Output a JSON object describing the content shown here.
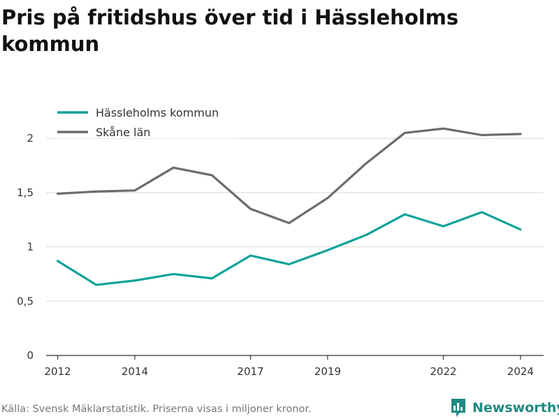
{
  "title": "Pris på fritidshus över tid i Hässleholms kommun",
  "source": "Källa: Svensk Mäklarstatistik. Priserna visas i miljoner kronor.",
  "brand": "Newsworthy",
  "colors": {
    "hassleholm": "#0fa39a",
    "skane": "#6b6b72",
    "grid": "#d8d8d8",
    "brand": "#1f8a83"
  },
  "chart_data": {
    "type": "line",
    "x": [
      2012,
      2013,
      2014,
      2015,
      2016,
      2017,
      2018,
      2019,
      2020,
      2021,
      2022,
      2023,
      2024
    ],
    "series": [
      {
        "name": "Hässleholms kommun",
        "values": [
          0.87,
          0.65,
          0.69,
          0.75,
          0.71,
          0.92,
          0.84,
          0.97,
          1.11,
          1.3,
          1.19,
          1.32,
          1.16
        ]
      },
      {
        "name": "Skåne län",
        "values": [
          1.49,
          1.51,
          1.52,
          1.73,
          1.66,
          1.35,
          1.22,
          1.45,
          1.77,
          2.05,
          2.09,
          2.03,
          2.04
        ]
      }
    ],
    "x_ticks": [
      2012,
      2014,
      2017,
      2019,
      2022,
      2024
    ],
    "y_ticks": [
      0,
      0.5,
      1,
      1.5,
      2
    ],
    "y_tick_labels": [
      "0",
      "0,5",
      "1",
      "1,5",
      "2"
    ],
    "xlim": [
      2011.7,
      2024.6
    ],
    "ylim": [
      0,
      2.2
    ],
    "legend_position": "top-left",
    "grid": true
  }
}
